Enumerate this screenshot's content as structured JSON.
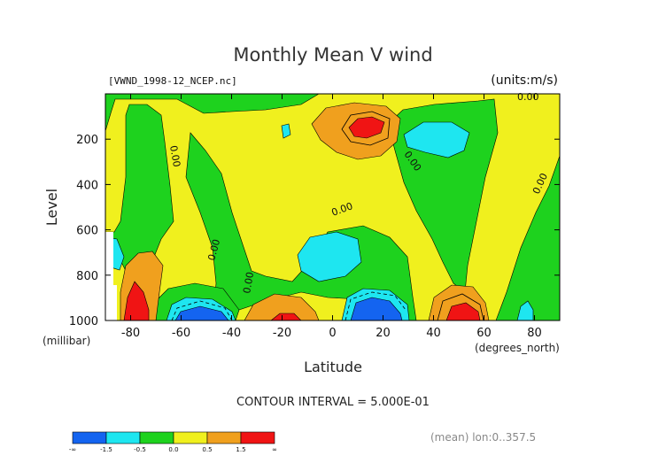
{
  "chart_data": {
    "type": "contour",
    "title": "Monthly Mean V wind",
    "file_label": "[VWND_1998-12_NCEP.nc]",
    "units_label": "(units:m/s)",
    "ylabel": "Level",
    "ylabel_units": "(millibar)",
    "xlabel": "Latitude",
    "xlabel_units": "(degrees_north)",
    "x_range": [
      -90,
      90
    ],
    "y_range": [
      1000,
      0
    ],
    "x_ticks": [
      "-80",
      "-60",
      "-40",
      "-20",
      "0",
      "20",
      "40",
      "60",
      "80"
    ],
    "x_tick_values": [
      -80,
      -60,
      -40,
      -20,
      0,
      20,
      40,
      60,
      80
    ],
    "y_ticks": [
      "200",
      "400",
      "600",
      "800",
      "1000"
    ],
    "y_tick_values": [
      200,
      400,
      600,
      800,
      1000
    ],
    "contour_interval_text": "CONTOUR INTERVAL = 5.000E-01",
    "contour_labels": [
      "0.00",
      "0.00",
      "0.00",
      "0.00",
      "0.00",
      "0.00",
      "0.00"
    ],
    "mean_note": "(mean) lon:0..357.5",
    "colorbar": {
      "colors": [
        "#1464f0",
        "#1ee6f0",
        "#1ed21e",
        "#f0f01e",
        "#f0a01e",
        "#f01414"
      ],
      "labels": [
        "-∞",
        "-1.5",
        "-0.5",
        "0.0",
        "0.5",
        "1.5",
        "∞"
      ]
    }
  }
}
